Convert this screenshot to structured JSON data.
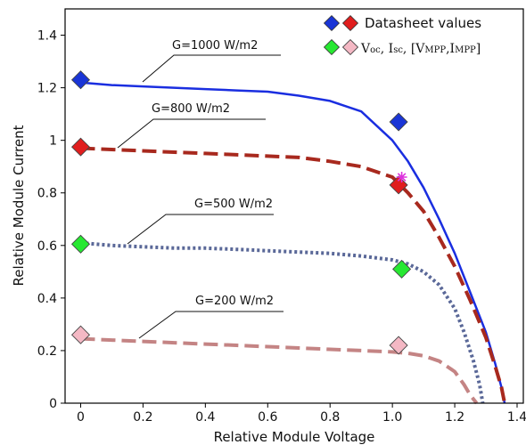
{
  "chart_data": {
    "type": "line",
    "xlabel": "Relative Module Voltage",
    "ylabel": "Relative Module Current",
    "xlim": [
      -0.05,
      1.42
    ],
    "ylim": [
      0,
      1.5
    ],
    "x_ticks": [
      0,
      0.2,
      0.4,
      0.6,
      0.8,
      1.0,
      1.2,
      1.4
    ],
    "x_tick_labels": [
      "0",
      "0.2",
      "0.4",
      "0.6",
      "0.8",
      "1.0",
      "1.2",
      "1.4"
    ],
    "y_ticks": [
      0,
      0.2,
      0.4,
      0.6,
      0.8,
      1.0,
      1.2,
      1.4
    ],
    "y_tick_labels": [
      "0",
      "0.2",
      "0.4",
      "0.6",
      "0.8",
      "1",
      "1.2",
      "1.4"
    ],
    "grid": false,
    "legend_position": "top-right",
    "legend": [
      {
        "label": "Datasheet values",
        "markers": [
          "#1a35d6",
          "#e01e1e"
        ]
      },
      {
        "label_parts": [
          "V",
          "oc",
          ", I",
          "sc",
          ", [V",
          "MPP",
          ",I",
          "MPP",
          "]"
        ],
        "markers": [
          "#27e832",
          "#f4b8c4"
        ]
      }
    ],
    "series": [
      {
        "annotation": "G=1000 W/m2",
        "color": "#1a2ee0",
        "style": "solid",
        "points": [
          [
            0,
            1.22
          ],
          [
            0.1,
            1.21
          ],
          [
            0.2,
            1.205
          ],
          [
            0.3,
            1.2
          ],
          [
            0.4,
            1.195
          ],
          [
            0.5,
            1.19
          ],
          [
            0.6,
            1.185
          ],
          [
            0.7,
            1.17
          ],
          [
            0.8,
            1.15
          ],
          [
            0.9,
            1.11
          ],
          [
            1.0,
            1.0
          ],
          [
            1.05,
            0.92
          ],
          [
            1.1,
            0.82
          ],
          [
            1.15,
            0.7
          ],
          [
            1.2,
            0.57
          ],
          [
            1.25,
            0.42
          ],
          [
            1.3,
            0.27
          ],
          [
            1.33,
            0.15
          ],
          [
            1.35,
            0.06
          ],
          [
            1.36,
            0.0
          ]
        ]
      },
      {
        "annotation": "G=800 W/m2",
        "color": "#a8291e",
        "style": "dashed",
        "points": [
          [
            0,
            0.97
          ],
          [
            0.1,
            0.965
          ],
          [
            0.2,
            0.96
          ],
          [
            0.3,
            0.955
          ],
          [
            0.4,
            0.95
          ],
          [
            0.5,
            0.945
          ],
          [
            0.6,
            0.94
          ],
          [
            0.7,
            0.935
          ],
          [
            0.8,
            0.92
          ],
          [
            0.9,
            0.9
          ],
          [
            1.0,
            0.86
          ],
          [
            1.05,
            0.8
          ],
          [
            1.1,
            0.73
          ],
          [
            1.15,
            0.63
          ],
          [
            1.2,
            0.52
          ],
          [
            1.25,
            0.39
          ],
          [
            1.3,
            0.25
          ],
          [
            1.33,
            0.14
          ],
          [
            1.35,
            0.06
          ],
          [
            1.36,
            0.0
          ]
        ]
      },
      {
        "annotation": "G=500 W/m2",
        "color": "#5a6898",
        "style": "dotted",
        "points": [
          [
            0,
            0.61
          ],
          [
            0.1,
            0.6
          ],
          [
            0.2,
            0.595
          ],
          [
            0.3,
            0.59
          ],
          [
            0.4,
            0.59
          ],
          [
            0.5,
            0.585
          ],
          [
            0.6,
            0.58
          ],
          [
            0.7,
            0.575
          ],
          [
            0.8,
            0.57
          ],
          [
            0.9,
            0.56
          ],
          [
            1.0,
            0.545
          ],
          [
            1.05,
            0.53
          ],
          [
            1.1,
            0.5
          ],
          [
            1.15,
            0.45
          ],
          [
            1.2,
            0.36
          ],
          [
            1.23,
            0.27
          ],
          [
            1.26,
            0.16
          ],
          [
            1.28,
            0.07
          ],
          [
            1.29,
            0.0
          ]
        ]
      },
      {
        "annotation": "G=200 W/m2",
        "color": "#c48484",
        "style": "dashed",
        "points": [
          [
            0,
            0.245
          ],
          [
            0.1,
            0.24
          ],
          [
            0.2,
            0.235
          ],
          [
            0.3,
            0.23
          ],
          [
            0.4,
            0.225
          ],
          [
            0.5,
            0.22
          ],
          [
            0.6,
            0.215
          ],
          [
            0.7,
            0.21
          ],
          [
            0.8,
            0.205
          ],
          [
            0.9,
            0.2
          ],
          [
            1.0,
            0.195
          ],
          [
            1.05,
            0.19
          ],
          [
            1.1,
            0.18
          ],
          [
            1.15,
            0.16
          ],
          [
            1.2,
            0.12
          ],
          [
            1.23,
            0.07
          ],
          [
            1.25,
            0.03
          ],
          [
            1.27,
            0.0
          ]
        ]
      }
    ],
    "markers": [
      {
        "x": 0,
        "y": 1.23,
        "color": "#1a35d6"
      },
      {
        "x": 1.02,
        "y": 1.07,
        "color": "#1a35d6"
      },
      {
        "x": 0,
        "y": 0.975,
        "color": "#e01e1e"
      },
      {
        "x": 1.02,
        "y": 0.83,
        "color": "#e01e1e"
      },
      {
        "x": 0,
        "y": 0.605,
        "color": "#27e832"
      },
      {
        "x": 1.03,
        "y": 0.51,
        "color": "#27e832"
      },
      {
        "x": 0,
        "y": 0.26,
        "color": "#f4b8c4"
      },
      {
        "x": 1.02,
        "y": 0.22,
        "color": "#f4b8c4"
      }
    ],
    "star_point": {
      "x": 1.03,
      "y": 0.86,
      "color": "#dd33dd"
    }
  }
}
